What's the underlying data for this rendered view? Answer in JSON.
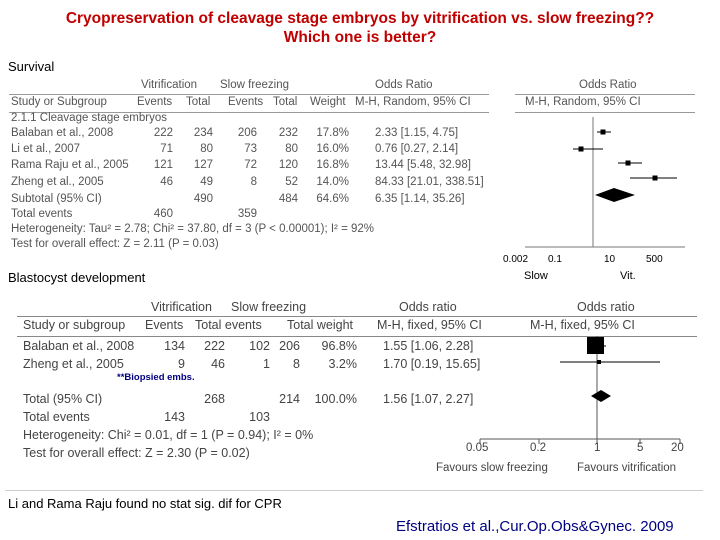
{
  "title_line1": "Cryopreservation of cleavage stage embryos by vitrification vs. slow freezing??",
  "title_line2": "Which one is better?",
  "survival_label": "Survival",
  "blastocyst_label": "Blastocyst development",
  "bottom_note": "Li and Rama Raju found no stat sig. dif for CPR",
  "citation": "Efstratios et al.,Cur.Op.Obs&Gynec. 2009",
  "plot1": {
    "headers": {
      "vitrification": "Vitrification",
      "slow_freezing": "Slow freezing",
      "odds_ratio": "Odds Ratio",
      "odds_ratio2": "Odds Ratio",
      "study": "Study or Subgroup",
      "events1": "Events",
      "total1": "Total",
      "events2": "Events",
      "total2": "Total",
      "weight": "Weight",
      "method": "M-H, Random, 95% CI",
      "method2": "M-H, Random, 95% CI"
    },
    "subgroup": "2.1.1 Cleavage stage embryos",
    "rows": [
      {
        "study": "Balaban et al., 2008",
        "e1": "222",
        "t1": "234",
        "e2": "206",
        "t2": "232",
        "w": "17.8%",
        "ci": "2.33 [1.15, 4.75]"
      },
      {
        "study": "Li et al., 2007",
        "e1": "71",
        "t1": "80",
        "e2": "73",
        "t2": "80",
        "w": "16.0%",
        "ci": "0.76 [0.27, 2.14]"
      },
      {
        "study": "Rama Raju et al., 2005",
        "e1": "121",
        "t1": "127",
        "e2": "72",
        "t2": "120",
        "w": "16.8%",
        "ci": "13.44 [5.48, 32.98]"
      },
      {
        "study": "Zheng et al., 2005",
        "e1": "46",
        "t1": "49",
        "e2": "8",
        "t2": "52",
        "w": "14.0%",
        "ci": "84.33 [21.01, 338.51]"
      }
    ],
    "subtotal": {
      "study": "Subtotal (95% CI)",
      "t1": "490",
      "t2": "484",
      "w": "64.6%",
      "ci": "6.35 [1.14, 35.26]"
    },
    "total_events": {
      "label": "Total events",
      "e1": "460",
      "e2": "359"
    },
    "heterogeneity": "Heterogeneity: Tau² = 2.78; Chi² = 37.80, df = 3 (P < 0.00001); I² = 92%",
    "overall": "Test for overall effect: Z = 2.11 (P = 0.03)",
    "axis_ticks": [
      "0.002",
      "0.1",
      "10",
      "500"
    ],
    "axis_left": "Slow",
    "axis_right": "Vit."
  },
  "plot2": {
    "headers": {
      "vitrification": "Vitrification",
      "slow_freezing": "Slow freezing",
      "odds_ratio": "Odds ratio",
      "odds_ratio2": "Odds ratio",
      "study": "Study or subgroup",
      "events1": "Events",
      "total_events1": "Total events",
      "total_weight": "Total weight",
      "method": "M-H, fixed, 95% CI",
      "method2": "M-H, fixed, 95% CI"
    },
    "rows": [
      {
        "study": "Balaban et al., 2008",
        "e1": "134",
        "t1": "222",
        "e2": "102",
        "t2": "206",
        "w": "96.8%",
        "ci": "1.55 [1.06, 2.28]"
      },
      {
        "study": "Zheng et al., 2005",
        "e1": "9",
        "t1": "46",
        "e2": "1",
        "t2": "8",
        "w": "3.2%",
        "ci": "1.70 [0.19, 15.65]"
      }
    ],
    "biopsied_note": "**Biopsied embs.",
    "total": {
      "study": "Total (95% CI)",
      "t1": "268",
      "t2": "214",
      "w": "100.0%",
      "ci": "1.56 [1.07, 2.27]"
    },
    "total_events": {
      "label": "Total events",
      "e1": "143",
      "e2": "103"
    },
    "heterogeneity": "Heterogeneity: Chi² = 0.01, df = 1 (P = 0.94); I² = 0%",
    "overall": "Test for overall effect: Z = 2.30 (P = 0.02)",
    "axis_ticks": [
      "0.05",
      "0.2",
      "1",
      "5",
      "20"
    ],
    "axis_left": "Favours slow freezing",
    "axis_right": "Favours vitrification"
  }
}
